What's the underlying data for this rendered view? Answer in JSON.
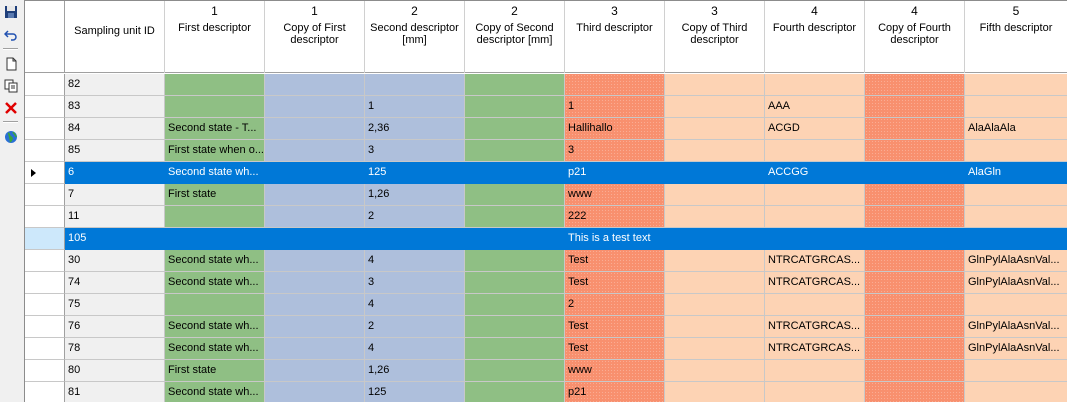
{
  "toolbar": {
    "buttons": [
      "save-icon",
      "undo-icon",
      "new-document-icon",
      "copy-icon",
      "delete-icon",
      "globe-icon"
    ]
  },
  "columns": [
    {
      "num": "",
      "label": "Sampling unit ID"
    },
    {
      "num": "1",
      "label": "First descriptor"
    },
    {
      "num": "1",
      "label": "Copy of First descriptor"
    },
    {
      "num": "2",
      "label": "Second descriptor [mm]"
    },
    {
      "num": "2",
      "label": "Copy of Second descriptor [mm]"
    },
    {
      "num": "3",
      "label": "Third descriptor"
    },
    {
      "num": "3",
      "label": "Copy of Third descriptor"
    },
    {
      "num": "4",
      "label": "Fourth descriptor"
    },
    {
      "num": "4",
      "label": "Copy of Fourth descriptor"
    },
    {
      "num": "5",
      "label": "Fifth descriptor"
    }
  ],
  "rows": [
    {
      "id": "82",
      "c": [
        "",
        "",
        "",
        "",
        "",
        "",
        "",
        "",
        ""
      ]
    },
    {
      "id": "83",
      "c": [
        "",
        "",
        "1",
        "",
        "1",
        "",
        "AAA",
        "",
        ""
      ]
    },
    {
      "id": "84",
      "c": [
        "Second state - T...",
        "",
        "2,36",
        "",
        "Hallihallo",
        "",
        "ACGD",
        "",
        "AlaAlaAla"
      ]
    },
    {
      "id": "85",
      "c": [
        "First state when o...",
        "",
        "3",
        "",
        "3",
        "",
        "",
        "",
        ""
      ]
    },
    {
      "id": "6",
      "c": [
        "Second state wh...",
        "",
        "125",
        "",
        "p21",
        "",
        "ACCGG",
        "",
        "AlaGln"
      ],
      "state": "selected"
    },
    {
      "id": "7",
      "c": [
        "First state",
        "",
        "1,26",
        "",
        "www",
        "",
        "",
        "",
        ""
      ]
    },
    {
      "id": "11",
      "c": [
        "",
        "",
        "2",
        "",
        "222",
        "",
        "",
        "",
        ""
      ]
    },
    {
      "id": "105",
      "c": [
        "",
        "",
        "",
        "",
        "This is a test text",
        "",
        "",
        "",
        ""
      ],
      "state": "new"
    },
    {
      "id": "30",
      "c": [
        "Second state wh...",
        "",
        "4",
        "",
        "Test",
        "",
        "NTRCATGRCAS...",
        "",
        "GlnPylAlaAsnVal..."
      ]
    },
    {
      "id": "74",
      "c": [
        "Second state wh...",
        "",
        "3",
        "",
        "Test",
        "",
        "NTRCATGRCAS...",
        "",
        "GlnPylAlaAsnVal..."
      ]
    },
    {
      "id": "75",
      "c": [
        "",
        "",
        "4",
        "",
        "2",
        "",
        "",
        "",
        ""
      ]
    },
    {
      "id": "76",
      "c": [
        "Second state wh...",
        "",
        "2",
        "",
        "Test",
        "",
        "NTRCATGRCAS...",
        "",
        "GlnPylAlaAsnVal..."
      ]
    },
    {
      "id": "78",
      "c": [
        "Second state wh...",
        "",
        "4",
        "",
        "Test",
        "",
        "NTRCATGRCAS...",
        "",
        "GlnPylAlaAsnVal..."
      ]
    },
    {
      "id": "80",
      "c": [
        "First state",
        "",
        "1,26",
        "",
        "www",
        "",
        "",
        "",
        ""
      ]
    },
    {
      "id": "81",
      "c": [
        "Second state wh...",
        "",
        "125",
        "",
        "p21",
        "",
        "",
        "",
        ""
      ]
    }
  ],
  "colors": {
    "green": "#8fbf84",
    "blue": "#aebfdc",
    "peach": "#fdd3b4",
    "salmon": "#f8906e",
    "selection": "#0078d7"
  }
}
